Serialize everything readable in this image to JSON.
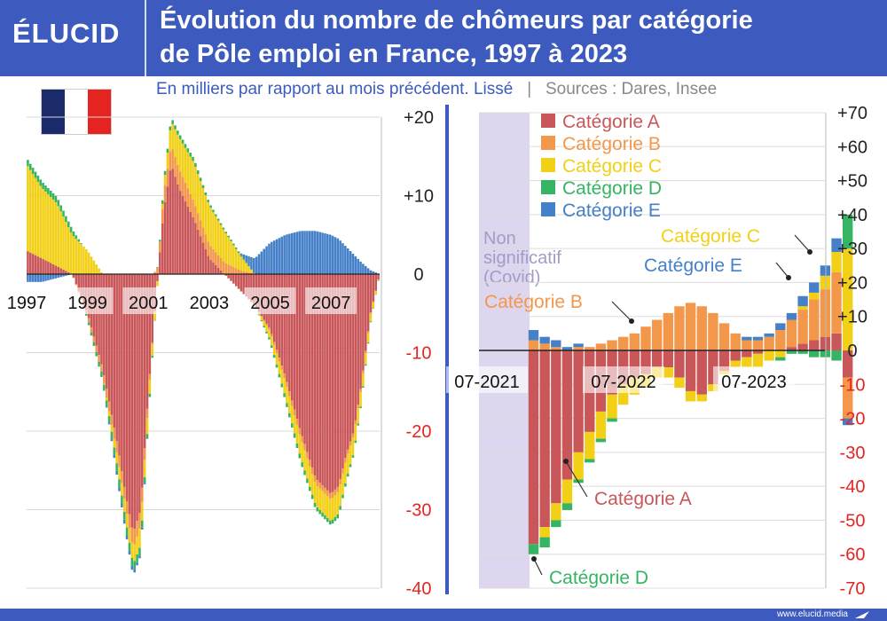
{
  "header": {
    "logo": "ÉLUCID",
    "title_line1": "Évolution du nombre de chômeurs par catégorie",
    "title_line2": "de Pôle emploi en France, 1997 à 2023",
    "subtitle": "En milliers par rapport au mois précédent. Lissé",
    "separator": "|",
    "sources": "Sources : Dares, Insee"
  },
  "footer": {
    "site": "www.elucid.media"
  },
  "flag": {
    "country": "France",
    "icon": "french-flag-icon",
    "colors": [
      "#1b2a6b",
      "#ffffff",
      "#e52421"
    ]
  },
  "colors": {
    "A": "#c9575a",
    "B": "#f3974a",
    "C": "#f2d017",
    "D": "#35b563",
    "E": "#4580c8",
    "covid_band": "#ddd6ee",
    "divider": "#3d5bbf",
    "negative_tick": "#e52421"
  },
  "chart_data": [
    {
      "type": "bar",
      "stacked": true,
      "x_ticks": [
        "1997",
        "1999",
        "2001",
        "2003",
        "2005",
        "2007"
      ],
      "y_ticks": [
        "+20",
        "+10",
        "0",
        "-10",
        "-20",
        "-30",
        "-40"
      ],
      "ylim": [
        -40,
        20
      ],
      "xlim": [
        1997.0,
        2008.6
      ],
      "series_order": [
        "A",
        "B",
        "C",
        "D",
        "E"
      ],
      "knots": {
        "x": [
          1997.0,
          1997.5,
          1998.0,
          1998.5,
          1999.0,
          1999.5,
          2000.0,
          2000.25,
          2000.5,
          2000.75,
          2001.0,
          2001.25,
          2001.5,
          2001.75,
          2002.0,
          2002.5,
          2003.0,
          2003.5,
          2004.0,
          2004.5,
          2005.0,
          2005.5,
          2006.0,
          2006.5,
          2007.0,
          2007.25,
          2007.5,
          2007.75,
          2008.0,
          2008.3,
          2008.6
        ],
        "A": [
          3,
          2,
          1,
          0,
          -5,
          -12,
          -22,
          -28,
          -33,
          -30,
          -15,
          -3,
          8,
          14,
          11,
          7,
          2,
          0,
          -2,
          -4,
          -7,
          -13,
          -20,
          -26,
          -28,
          -27,
          -23,
          -20,
          -14,
          -5,
          0
        ],
        "B": [
          0,
          0,
          0,
          0,
          -0.5,
          -1,
          -1.5,
          -1.5,
          -2,
          -2,
          -1,
          0.5,
          2,
          2.5,
          2.5,
          2.2,
          1.8,
          1.5,
          0.5,
          0,
          -0.3,
          -0.6,
          -0.8,
          -0.8,
          -0.7,
          -0.7,
          -0.6,
          -0.5,
          -0.4,
          -0.2,
          0
        ],
        "C": [
          11,
          9,
          8,
          5,
          3,
          0,
          -1.5,
          -1.7,
          -2,
          -2.5,
          -2,
          -1,
          1,
          3,
          4,
          5,
          5,
          4,
          2,
          0,
          -1,
          -2,
          -2.5,
          -2.7,
          -2.8,
          -2.8,
          -2.6,
          -2.2,
          -1.8,
          -1,
          0
        ],
        "D": [
          0.8,
          0.8,
          0.8,
          0.7,
          -0.3,
          -0.7,
          -1,
          -1,
          -1,
          -1,
          -0.5,
          0,
          0.5,
          0.5,
          0.5,
          0.5,
          0.3,
          0.2,
          0.2,
          0,
          -0.3,
          -0.5,
          -0.6,
          -0.5,
          -0.5,
          -0.5,
          -0.4,
          -0.3,
          -0.2,
          -0.1,
          0
        ],
        "E": [
          -1,
          -1,
          -0.5,
          0,
          0,
          0,
          -0.5,
          -0.5,
          -0.5,
          -0.3,
          0,
          0,
          0,
          0,
          0,
          0,
          0,
          0,
          0,
          2,
          4,
          5,
          5.5,
          5.5,
          5,
          4.5,
          3.5,
          2.5,
          1.5,
          0.5,
          0
        ]
      }
    },
    {
      "type": "bar",
      "stacked": true,
      "x_ticks": [
        "07-2021",
        "07-2022",
        "07-2023"
      ],
      "y_ticks": [
        "+70",
        "+60",
        "+50",
        "+40",
        "+30",
        "+20",
        "+10",
        "0",
        "-10",
        "-20",
        "-30",
        "-40",
        "-50",
        "-60",
        "-70"
      ],
      "ylim": [
        -70,
        70
      ],
      "months": [
        "2021-08",
        "2021-09",
        "2021-10",
        "2021-11",
        "2021-12",
        "2022-01",
        "2022-02",
        "2022-03",
        "2022-04",
        "2022-05",
        "2022-06",
        "2022-07",
        "2022-08",
        "2022-09",
        "2022-10",
        "2022-11",
        "2022-12",
        "2023-01",
        "2023-02",
        "2023-03",
        "2023-04",
        "2023-05",
        "2023-06",
        "2023-07",
        "2023-08",
        "2023-09",
        "2023-10",
        "2023-11",
        "2023-12"
      ],
      "series": [
        {
          "name": "Catégorie A",
          "values": [
            -57,
            -52,
            -45,
            -38,
            -30,
            -24,
            -18,
            -13,
            -10,
            -8,
            -7,
            -5,
            -5,
            -8,
            -12,
            -13,
            -10,
            -6,
            -3,
            -2,
            -1,
            0,
            0,
            1,
            2,
            3,
            4,
            5,
            -8
          ]
        },
        {
          "name": "Catégorie B",
          "values": [
            3,
            2,
            1,
            0,
            1,
            1,
            2,
            3,
            4,
            5,
            7,
            9,
            11,
            13,
            14,
            13,
            11,
            8,
            5,
            3,
            3,
            4,
            6,
            8,
            10,
            12,
            14,
            18,
            -12
          ]
        },
        {
          "name": "Catégorie C",
          "values": [
            0,
            -3,
            -5,
            -7,
            -8,
            -8,
            -8,
            -7,
            -6,
            -5,
            -4,
            -3,
            -3,
            -3,
            -3,
            -2,
            -2,
            -1,
            -2,
            -3,
            -4,
            -3,
            -2,
            0,
            1,
            2,
            4,
            6,
            30
          ]
        },
        {
          "name": "Catégorie D",
          "values": [
            -3,
            -3,
            -2,
            -2,
            -1,
            -1,
            -1,
            -1,
            0,
            0,
            0,
            0,
            0,
            0,
            0,
            0,
            0,
            0,
            0,
            0,
            0,
            0,
            -1,
            -1,
            -1,
            -2,
            -2,
            -3,
            10
          ]
        },
        {
          "name": "Catégorie E",
          "values": [
            3,
            2,
            2,
            1,
            1,
            0,
            0,
            0,
            0,
            0,
            0,
            0,
            0,
            0,
            0,
            0,
            0,
            0,
            0,
            1,
            1,
            1,
            2,
            2,
            3,
            3,
            3,
            4,
            -2
          ]
        }
      ],
      "covid_note": [
        "Non",
        "significatif",
        "(Covid)"
      ],
      "legend": [
        "Catégorie A",
        "Catégorie B",
        "Catégorie C",
        "Catégorie D",
        "Catégorie E"
      ],
      "annotations": [
        "Catégorie B",
        "Catégorie C",
        "Catégorie E",
        "Catégorie A",
        "Catégorie D"
      ]
    }
  ]
}
